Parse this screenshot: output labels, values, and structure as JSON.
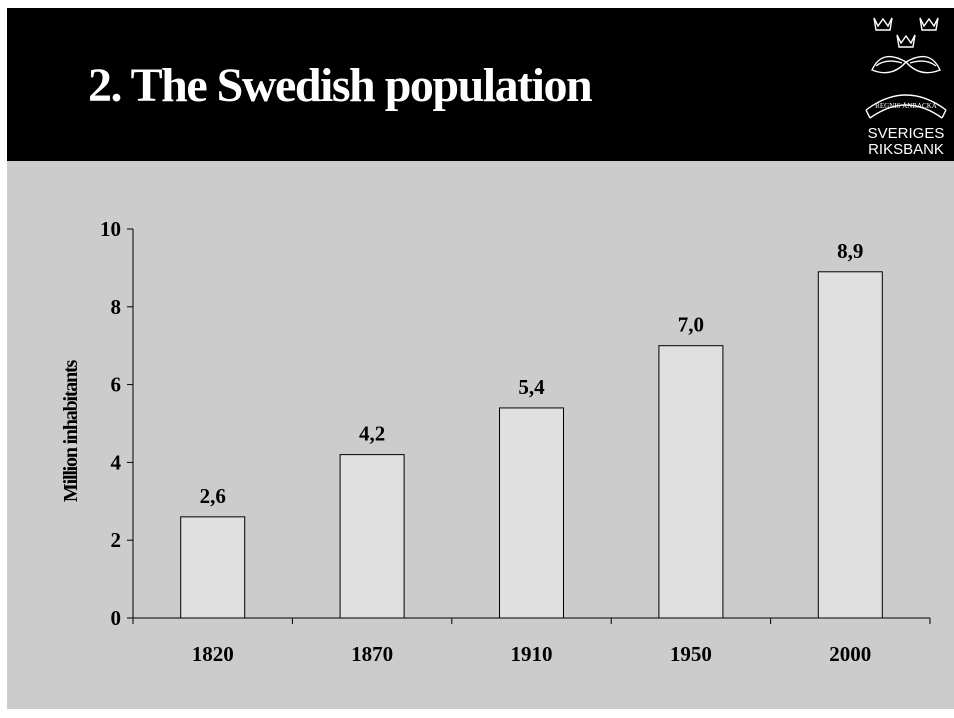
{
  "slide": {
    "title": "2. The Swedish population",
    "logo": {
      "line1": "SVERIGES",
      "line2": "RIKSBANK",
      "ribbon_text": "REGNIS ÅNBACKA"
    }
  },
  "colors": {
    "header_bg": "#000000",
    "content_bg": "#cccccc",
    "bar_fill": "#e0e0e0",
    "bar_stroke": "#000000"
  },
  "chart_data": {
    "type": "bar",
    "categories": [
      "1820",
      "1870",
      "1910",
      "1950",
      "2000"
    ],
    "values": [
      2.6,
      4.2,
      5.4,
      7.0,
      8.9
    ],
    "value_labels": [
      "2,6",
      "4,2",
      "5,4",
      "7,0",
      "8,9"
    ],
    "title": "",
    "xlabel": "",
    "ylabel": "Million inhabitants",
    "ylim": [
      0,
      10
    ],
    "yticks": [
      0,
      2,
      4,
      6,
      8,
      10
    ],
    "ytick_labels": [
      "0",
      "2",
      "4",
      "6",
      "8",
      "10"
    ],
    "grid": false,
    "legend": "none"
  }
}
